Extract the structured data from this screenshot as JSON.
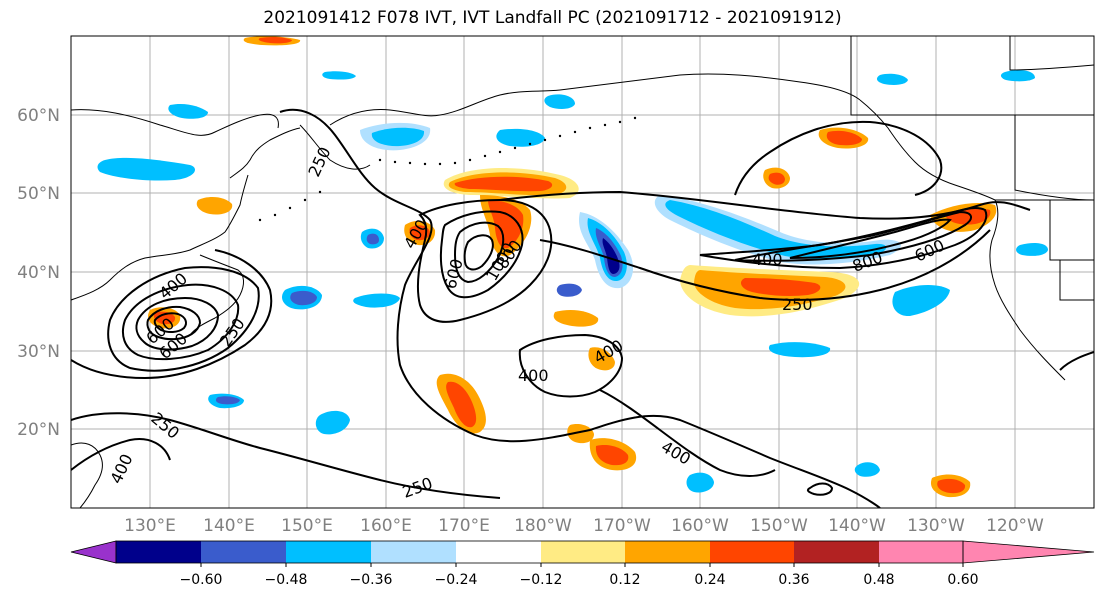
{
  "title": "2021091412 F078 IVT, IVT Landfall PC (2021091712 - 2021091912)",
  "lat_labels": [
    "60°N",
    "50°N",
    "40°N",
    "30°N",
    "20°N"
  ],
  "lon_labels": [
    "130°E",
    "140°E",
    "150°E",
    "160°E",
    "170°E",
    "180°W",
    "170°W",
    "160°W",
    "150°W",
    "140°W",
    "130°W",
    "120°W"
  ],
  "colorbar": {
    "ticks": [
      "−0.60",
      "−0.48",
      "−0.36",
      "−0.24",
      "−0.12",
      "0.12",
      "0.24",
      "0.36",
      "0.48",
      "0.60"
    ],
    "colors": [
      "#9932CC",
      "#00008B",
      "#3A5CCC",
      "#00BFFF",
      "#B0E0FF",
      "#FFFFFF",
      "#FFEB84",
      "#FFA500",
      "#FF4500",
      "#B22222",
      "#FF85B0"
    ]
  },
  "contour_labels": [
    "250",
    "400",
    "600",
    "800",
    "1000"
  ]
}
